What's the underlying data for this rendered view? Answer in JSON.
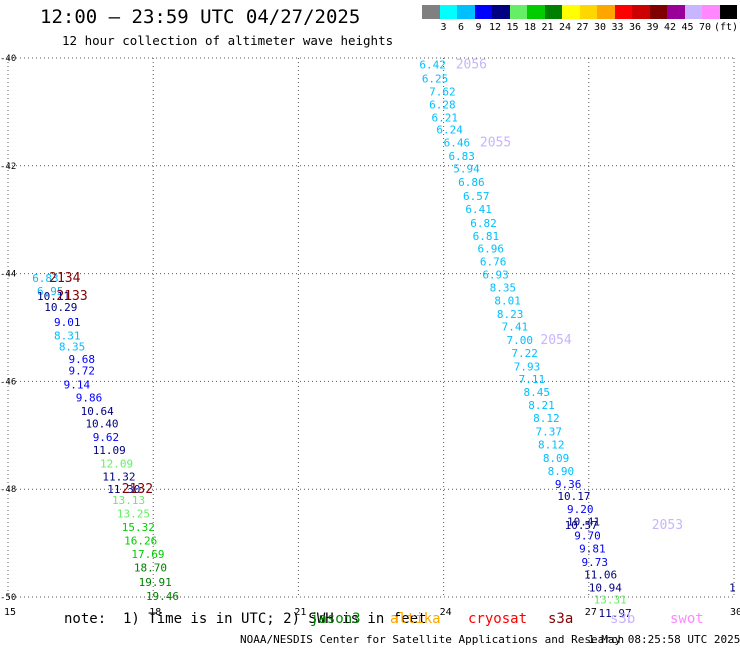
{
  "title": "12:00 – 23:59 UTC 04/27/2025",
  "subtitle": "12 hour collection of altimeter wave heights",
  "legend": {
    "unit": "(ft)",
    "bins": [
      {
        "color": "#808080",
        "label": ""
      },
      {
        "color": "#00ffff",
        "label": "3"
      },
      {
        "color": "#00bfff",
        "label": "6"
      },
      {
        "color": "#0000ff",
        "label": "9"
      },
      {
        "color": "#000080",
        "label": "12"
      },
      {
        "color": "#66ee66",
        "label": "15"
      },
      {
        "color": "#00cc00",
        "label": "18"
      },
      {
        "color": "#008000",
        "label": "21"
      },
      {
        "color": "#ffff00",
        "label": "24"
      },
      {
        "color": "#ffd700",
        "label": "27"
      },
      {
        "color": "#ffa500",
        "label": "30"
      },
      {
        "color": "#ff0000",
        "label": "33"
      },
      {
        "color": "#cc0000",
        "label": "36"
      },
      {
        "color": "#800000",
        "label": "39"
      },
      {
        "color": "#990099",
        "label": "42"
      },
      {
        "color": "#c8b4ff",
        "label": "45"
      },
      {
        "color": "#ff88ff",
        "label": "70"
      },
      {
        "color": "#000000",
        "label": ""
      }
    ]
  },
  "map": {
    "lon_ticks": [
      "15",
      "18",
      "21",
      "24",
      "27",
      "30"
    ],
    "lat_ticks": [
      "-40",
      "-42",
      "-44",
      "-46",
      "-48",
      "-50"
    ],
    "lon_range": [
      15,
      30
    ],
    "lat_range": [
      -40,
      -50
    ]
  },
  "west_pass": {
    "readings": [
      {
        "v": "6.83",
        "c": "#00bfff",
        "lon": 15.5,
        "lat": -44.08
      },
      {
        "v": "6.95",
        "c": "#00bfff",
        "lon": 15.6,
        "lat": -44.32
      },
      {
        "v": "10.11",
        "c": "#000080",
        "lon": 15.6,
        "lat": -44.42
      },
      {
        "v": "10.29",
        "c": "#000080",
        "lon": 15.75,
        "lat": -44.62
      },
      {
        "v": "9.01",
        "c": "#0000ff",
        "lon": 15.95,
        "lat": -44.9
      },
      {
        "v": "8.31",
        "c": "#00bfff",
        "lon": 15.95,
        "lat": -45.15
      },
      {
        "v": "8.35",
        "c": "#00bfff",
        "lon": 16.05,
        "lat": -45.35
      },
      {
        "v": "9.68",
        "c": "#0000ff",
        "lon": 16.25,
        "lat": -45.58
      },
      {
        "v": "9.72",
        "c": "#0000ff",
        "lon": 16.25,
        "lat": -45.8
      },
      {
        "v": "9.14",
        "c": "#0000ff",
        "lon": 16.15,
        "lat": -46.06
      },
      {
        "v": "9.86",
        "c": "#0000ff",
        "lon": 16.4,
        "lat": -46.3
      },
      {
        "v": "10.64",
        "c": "#000080",
        "lon": 16.5,
        "lat": -46.55
      },
      {
        "v": "10.40",
        "c": "#000080",
        "lon": 16.6,
        "lat": -46.78
      },
      {
        "v": "9.62",
        "c": "#0000ff",
        "lon": 16.75,
        "lat": -47.03
      },
      {
        "v": "11.09",
        "c": "#000080",
        "lon": 16.75,
        "lat": -47.27
      },
      {
        "v": "12.09",
        "c": "#66ee66",
        "lon": 16.9,
        "lat": -47.52
      },
      {
        "v": "11.32",
        "c": "#000080",
        "lon": 16.95,
        "lat": -47.76
      },
      {
        "v": "11.30",
        "c": "#000080",
        "lon": 17.05,
        "lat": -48.0
      },
      {
        "v": "13.13",
        "c": "#66ee66",
        "lon": 17.15,
        "lat": -48.2
      },
      {
        "v": "13.25",
        "c": "#66ee66",
        "lon": 17.25,
        "lat": -48.45
      },
      {
        "v": "15.32",
        "c": "#00cc00",
        "lon": 17.35,
        "lat": -48.7
      },
      {
        "v": "16.26",
        "c": "#00cc00",
        "lon": 17.4,
        "lat": -48.95
      },
      {
        "v": "17.69",
        "c": "#00cc00",
        "lon": 17.55,
        "lat": -49.2
      },
      {
        "v": "18.70",
        "c": "#008000",
        "lon": 17.6,
        "lat": -49.45
      },
      {
        "v": "19.91",
        "c": "#008000",
        "lon": 17.7,
        "lat": -49.72
      },
      {
        "v": "19.46",
        "c": "#008000",
        "lon": 17.85,
        "lat": -49.98
      }
    ],
    "times": [
      {
        "t": "2134",
        "c": "#800000",
        "lon": 15.85,
        "lat": -44.08
      },
      {
        "t": "2133",
        "c": "#800000",
        "lon": 16.0,
        "lat": -44.42
      },
      {
        "t": "2132",
        "c": "#800000",
        "lon": 17.35,
        "lat": -48.0
      }
    ]
  },
  "east_pass": {
    "readings": [
      {
        "v": "6.42",
        "c": "#00bfff",
        "lon": 23.5,
        "lat": -40.12
      },
      {
        "v": "6.25",
        "c": "#00bfff",
        "lon": 23.55,
        "lat": -40.38
      },
      {
        "v": "7.62",
        "c": "#00bfff",
        "lon": 23.7,
        "lat": -40.62
      },
      {
        "v": "6.28",
        "c": "#00bfff",
        "lon": 23.7,
        "lat": -40.86
      },
      {
        "v": "6.21",
        "c": "#00bfff",
        "lon": 23.75,
        "lat": -41.1
      },
      {
        "v": "6.24",
        "c": "#00bfff",
        "lon": 23.85,
        "lat": -41.33
      },
      {
        "v": "6.46",
        "c": "#00bfff",
        "lon": 24.0,
        "lat": -41.57
      },
      {
        "v": "6.83",
        "c": "#00bfff",
        "lon": 24.1,
        "lat": -41.82
      },
      {
        "v": "5.94",
        "c": "#00bfff",
        "lon": 24.2,
        "lat": -42.05
      },
      {
        "v": "6.86",
        "c": "#00bfff",
        "lon": 24.3,
        "lat": -42.3
      },
      {
        "v": "6.57",
        "c": "#00bfff",
        "lon": 24.4,
        "lat": -42.56
      },
      {
        "v": "6.41",
        "c": "#00bfff",
        "lon": 24.45,
        "lat": -42.8
      },
      {
        "v": "6.82",
        "c": "#00bfff",
        "lon": 24.55,
        "lat": -43.06
      },
      {
        "v": "6.81",
        "c": "#00bfff",
        "lon": 24.6,
        "lat": -43.3
      },
      {
        "v": "6.96",
        "c": "#00bfff",
        "lon": 24.7,
        "lat": -43.53
      },
      {
        "v": "6.76",
        "c": "#00bfff",
        "lon": 24.75,
        "lat": -43.78
      },
      {
        "v": "6.93",
        "c": "#00bfff",
        "lon": 24.8,
        "lat": -44.02
      },
      {
        "v": "8.35",
        "c": "#00bfff",
        "lon": 24.95,
        "lat": -44.26
      },
      {
        "v": "8.01",
        "c": "#00bfff",
        "lon": 25.05,
        "lat": -44.5
      },
      {
        "v": "8.23",
        "c": "#00bfff",
        "lon": 25.1,
        "lat": -44.75
      },
      {
        "v": "7.41",
        "c": "#00bfff",
        "lon": 25.2,
        "lat": -44.98
      },
      {
        "v": "7.00",
        "c": "#00bfff",
        "lon": 25.3,
        "lat": -45.23
      },
      {
        "v": "7.22",
        "c": "#00bfff",
        "lon": 25.4,
        "lat": -45.47
      },
      {
        "v": "7.93",
        "c": "#00bfff",
        "lon": 25.45,
        "lat": -45.72
      },
      {
        "v": "7.11",
        "c": "#00bfff",
        "lon": 25.55,
        "lat": -45.96
      },
      {
        "v": "8.45",
        "c": "#00bfff",
        "lon": 25.65,
        "lat": -46.2
      },
      {
        "v": "8.21",
        "c": "#00bfff",
        "lon": 25.75,
        "lat": -46.44
      },
      {
        "v": "8.12",
        "c": "#00bfff",
        "lon": 25.85,
        "lat": -46.68
      },
      {
        "v": "7.37",
        "c": "#00bfff",
        "lon": 25.9,
        "lat": -46.93
      },
      {
        "v": "8.12",
        "c": "#00bfff",
        "lon": 25.95,
        "lat": -47.17
      },
      {
        "v": "8.09",
        "c": "#00bfff",
        "lon": 26.05,
        "lat": -47.42
      },
      {
        "v": "8.90",
        "c": "#00bfff",
        "lon": 26.15,
        "lat": -47.66
      },
      {
        "v": "9.36",
        "c": "#0000ff",
        "lon": 26.3,
        "lat": -47.9
      },
      {
        "v": "10.17",
        "c": "#000080",
        "lon": 26.35,
        "lat": -48.13
      },
      {
        "v": "9.20",
        "c": "#0000ff",
        "lon": 26.55,
        "lat": -48.37
      },
      {
        "v": "10.41",
        "c": "#000080",
        "lon": 26.55,
        "lat": -48.6
      },
      {
        "v": "10.57",
        "c": "#000080",
        "lon": 26.5,
        "lat": -48.66
      },
      {
        "v": "9.70",
        "c": "#0000ff",
        "lon": 26.7,
        "lat": -48.86
      },
      {
        "v": "9.81",
        "c": "#0000ff",
        "lon": 26.8,
        "lat": -49.1
      },
      {
        "v": "9.73",
        "c": "#0000ff",
        "lon": 26.85,
        "lat": -49.35
      },
      {
        "v": "11.06",
        "c": "#000080",
        "lon": 26.9,
        "lat": -49.58
      },
      {
        "v": "10.94",
        "c": "#000080",
        "lon": 27.0,
        "lat": -49.82
      },
      {
        "v": "13.31",
        "c": "#66ee66",
        "lon": 27.1,
        "lat": -50.05
      },
      {
        "v": "11.97",
        "c": "#000080",
        "lon": 27.2,
        "lat": -50.3
      }
    ],
    "times": [
      {
        "t": "2056",
        "c": "#c8b4ff",
        "lon": 24.25,
        "lat": -40.12
      },
      {
        "t": "2055",
        "c": "#c8b4ff",
        "lon": 24.75,
        "lat": -41.57
      },
      {
        "t": "2054",
        "c": "#c8b4ff",
        "lon": 26.0,
        "lat": -45.23
      },
      {
        "t": "2053",
        "c": "#c8b4ff",
        "lon": 28.3,
        "lat": -48.66
      }
    ]
  },
  "edge_reading": {
    "v": "1",
    "c": "#000080",
    "lon": 29.9,
    "lat": -49.9
  },
  "footer": {
    "note": "note:  1) Time is in UTC; 2) SWH is in feet",
    "satellites": [
      {
        "name": "jason3",
        "color": "#008000"
      },
      {
        "name": "altika",
        "color": "#ffa500"
      },
      {
        "name": "cryosat",
        "color": "#ff0000"
      },
      {
        "name": "s3a",
        "color": "#800000"
      },
      {
        "name": "s3b",
        "color": "#c8b4ff"
      },
      {
        "name": "swot",
        "color": "#ff88ff"
      }
    ],
    "credit": "NOAA/NESDIS Center for Satellite Applications and Research",
    "timestamp": "1 May 08:25:58 UTC 2025"
  }
}
